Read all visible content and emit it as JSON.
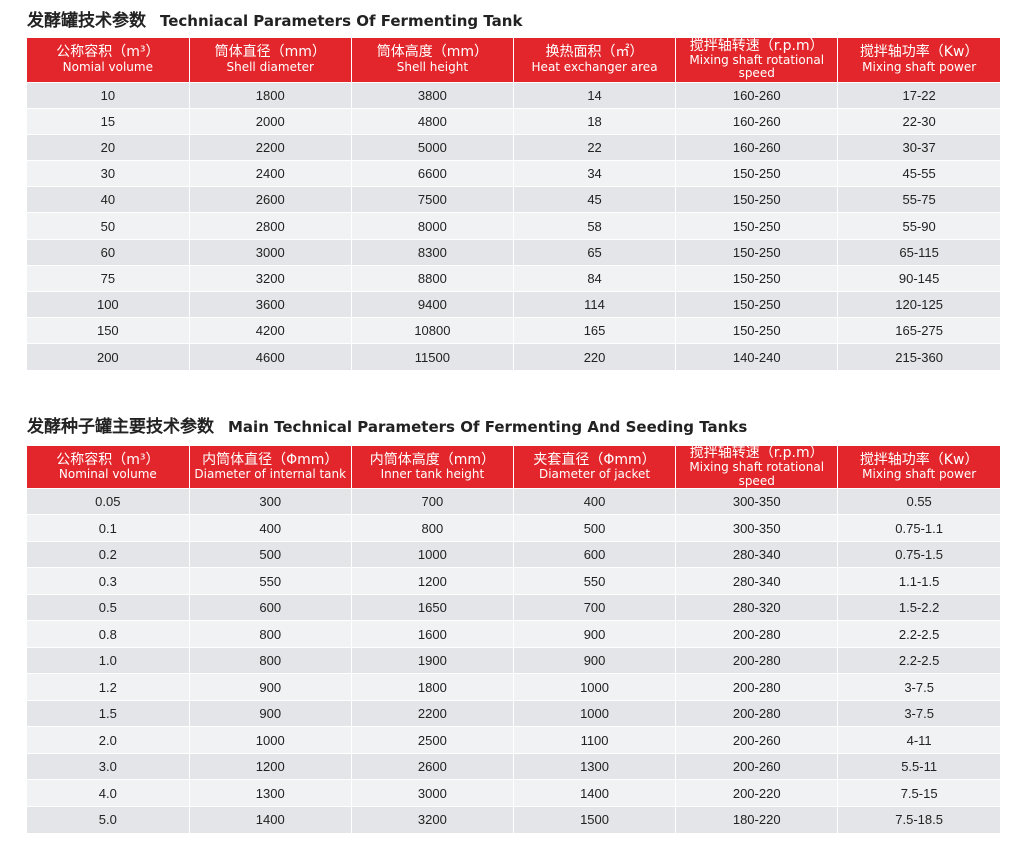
{
  "tables": [
    {
      "title_cn": "发酵罐技术参数",
      "title_en": "Techniacal Parameters Of Fermenting Tank",
      "headers": [
        {
          "cn": "公称容积（m³）",
          "en": "Nomial volume"
        },
        {
          "cn": "筒体直径（mm）",
          "en": "Shell diameter"
        },
        {
          "cn": "筒体高度（mm）",
          "en": "Shell height"
        },
        {
          "cn": "换热面积（㎡）",
          "en": "Heat exchanger area"
        },
        {
          "cn": "搅拌轴转速（r.p.m）",
          "en": "Mixing shaft rotational speed"
        },
        {
          "cn": "搅拌轴功率（Kw）",
          "en": "Mixing shaft power"
        }
      ],
      "rows": [
        [
          "10",
          "1800",
          "3800",
          "14",
          "160-260",
          "17-22"
        ],
        [
          "15",
          "2000",
          "4800",
          "18",
          "160-260",
          "22-30"
        ],
        [
          "20",
          "2200",
          "5000",
          "22",
          "160-260",
          "30-37"
        ],
        [
          "30",
          "2400",
          "6600",
          "34",
          "150-250",
          "45-55"
        ],
        [
          "40",
          "2600",
          "7500",
          "45",
          "150-250",
          "55-75"
        ],
        [
          "50",
          "2800",
          "8000",
          "58",
          "150-250",
          "55-90"
        ],
        [
          "60",
          "3000",
          "8300",
          "65",
          "150-250",
          "65-115"
        ],
        [
          "75",
          "3200",
          "8800",
          "84",
          "150-250",
          "90-145"
        ],
        [
          "100",
          "3600",
          "9400",
          "114",
          "150-250",
          "120-125"
        ],
        [
          "150",
          "4200",
          "10800",
          "165",
          "150-250",
          "165-275"
        ],
        [
          "200",
          "4600",
          "11500",
          "220",
          "140-240",
          "215-360"
        ]
      ]
    },
    {
      "title_cn": "发酵种子罐主要技术参数",
      "title_en": "Main Technical Parameters Of Fermenting And Seeding Tanks",
      "headers": [
        {
          "cn": "公称容积（m³）",
          "en": "Nominal volume"
        },
        {
          "cn": "内筒体直径（Φmm）",
          "en": "Diameter of internal tank"
        },
        {
          "cn": "内筒体高度（mm）",
          "en": "Inner tank height"
        },
        {
          "cn": "夹套直径（Φmm）",
          "en": "Diameter of jacket"
        },
        {
          "cn": "搅拌轴转速（r.p.m）",
          "en": "Mixing shaft rotational speed"
        },
        {
          "cn": "搅拌轴功率（Kw）",
          "en": "Mixing shaft power"
        }
      ],
      "rows": [
        [
          "0.05",
          "300",
          "700",
          "400",
          "300-350",
          "0.55"
        ],
        [
          "0.1",
          "400",
          "800",
          "500",
          "300-350",
          "0.75-1.1"
        ],
        [
          "0.2",
          "500",
          "1000",
          "600",
          "280-340",
          "0.75-1.5"
        ],
        [
          "0.3",
          "550",
          "1200",
          "550",
          "280-340",
          "1.1-1.5"
        ],
        [
          "0.5",
          "600",
          "1650",
          "700",
          "280-320",
          "1.5-2.2"
        ],
        [
          "0.8",
          "800",
          "1600",
          "900",
          "200-280",
          "2.2-2.5"
        ],
        [
          "1.0",
          "800",
          "1900",
          "900",
          "200-280",
          "2.2-2.5"
        ],
        [
          "1.2",
          "900",
          "1800",
          "1000",
          "200-280",
          "3-7.5"
        ],
        [
          "1.5",
          "900",
          "2200",
          "1000",
          "200-280",
          "3-7.5"
        ],
        [
          "2.0",
          "1000",
          "2500",
          "1100",
          "200-260",
          "4-11"
        ],
        [
          "3.0",
          "1200",
          "2600",
          "1300",
          "200-260",
          "5.5-11"
        ],
        [
          "4.0",
          "1300",
          "3000",
          "1400",
          "200-220",
          "7.5-15"
        ],
        [
          "5.0",
          "1400",
          "3200",
          "1500",
          "180-220",
          "7.5-18.5"
        ]
      ]
    }
  ]
}
